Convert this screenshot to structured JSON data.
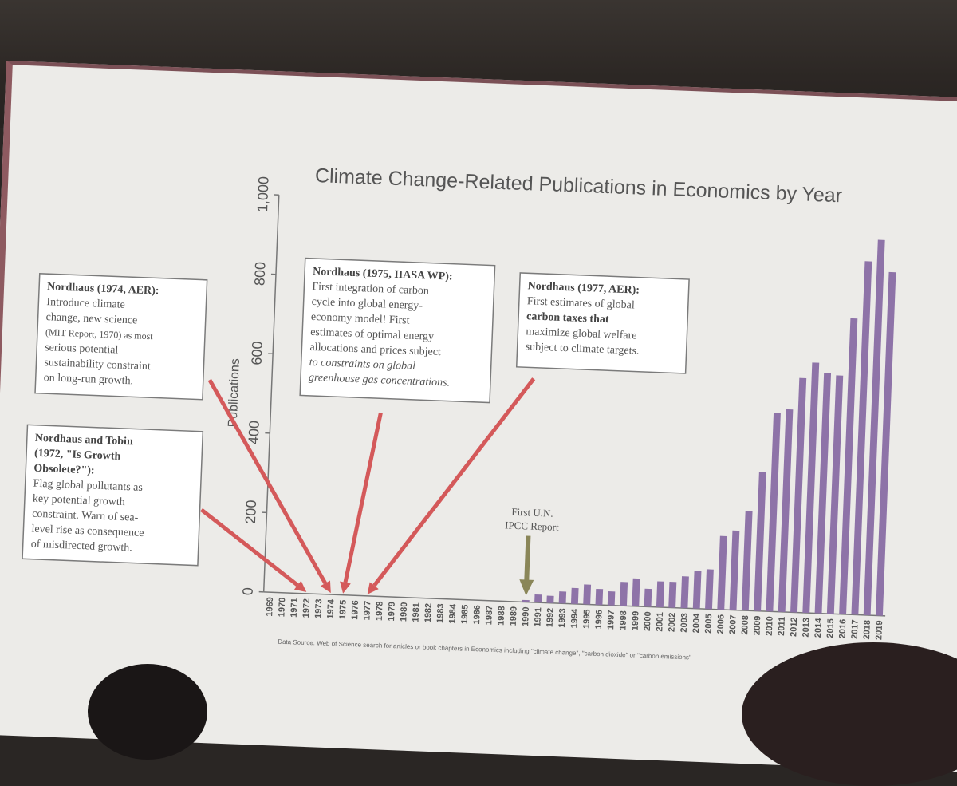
{
  "chart_data": {
    "type": "bar",
    "title": "Climate Change-Related Publications in Economics by Year",
    "ylabel": "Publications",
    "xlabel": "",
    "ylim": [
      0,
      1000
    ],
    "yticks": [
      "0",
      "200",
      "400",
      "600",
      "800",
      "1,000"
    ],
    "legend": "none",
    "grid": false,
    "bar_color": "#8e73a8",
    "categories": [
      "1969",
      "1970",
      "1971",
      "1972",
      "1973",
      "1974",
      "1975",
      "1976",
      "1977",
      "1978",
      "1979",
      "1980",
      "1981",
      "1982",
      "1983",
      "1984",
      "1985",
      "1986",
      "1987",
      "1988",
      "1989",
      "1990",
      "1991",
      "1992",
      "1993",
      "1994",
      "1995",
      "1996",
      "1997",
      "1998",
      "1999",
      "2000",
      "2001",
      "2002",
      "2003",
      "2004",
      "2005",
      "2006",
      "2007",
      "2008",
      "2009",
      "2010",
      "2011",
      "2012",
      "2013",
      "2014",
      "2015",
      "2016",
      "2017",
      "2018",
      "2019"
    ],
    "values": [
      0,
      0,
      0,
      0,
      0,
      0,
      0,
      0,
      0,
      0,
      0,
      0,
      0,
      0,
      0,
      0,
      0,
      0,
      0,
      0,
      0,
      5,
      20,
      18,
      30,
      40,
      50,
      40,
      35,
      60,
      70,
      45,
      65,
      65,
      80,
      95,
      100,
      185,
      200,
      250,
      350,
      500,
      510,
      590,
      630,
      605,
      600,
      745,
      890,
      945,
      865
    ],
    "source": "Data Source: Web of Science search for articles or book chapters in Economics including \"climate change\", \"carbon dioxide\" or \"carbon emissions\""
  },
  "annotations": {
    "ipcc": {
      "line1": "First U.N.",
      "line2": "IPCC Report",
      "year": "1990"
    },
    "callouts": [
      {
        "id": "nordhaus-1974",
        "target_year": "1974",
        "heading": "Nordhaus (1974, AER):",
        "lines": [
          "Introduce climate",
          "change, new science",
          "(MIT Report, 1970) as most",
          "serious potential",
          "sustainability constraint",
          "on long-run growth."
        ]
      },
      {
        "id": "nordhaus-tobin-1972",
        "target_year": "1972",
        "heading": "Nordhaus and Tobin",
        "lines": [
          "(1972, \"Is Growth",
          "Obsolete?\"):",
          "Flag global pollutants as",
          "key potential growth",
          "constraint. Warn of sea-",
          "level rise as consequence",
          "of misdirected growth."
        ]
      },
      {
        "id": "nordhaus-1975",
        "target_year": "1975",
        "heading": "Nordhaus (1975, IIASA WP):",
        "lines": [
          "First integration of carbon",
          "cycle into global energy-",
          "economy model! First",
          "estimates of optimal energy",
          "allocations and prices subject",
          "to constraints on global",
          "greenhouse gas concentrations."
        ]
      },
      {
        "id": "nordhaus-1977",
        "target_year": "1977",
        "heading": "Nordhaus (1977, AER):",
        "lines": [
          "First estimates of global",
          "carbon taxes that",
          "maximize global welfare",
          "subject to climate targets."
        ]
      }
    ]
  },
  "colors": {
    "arrow": "#d4595a",
    "ipcc_arrow": "#8a8658",
    "bar": "#8e73a8",
    "text": "#555555"
  }
}
